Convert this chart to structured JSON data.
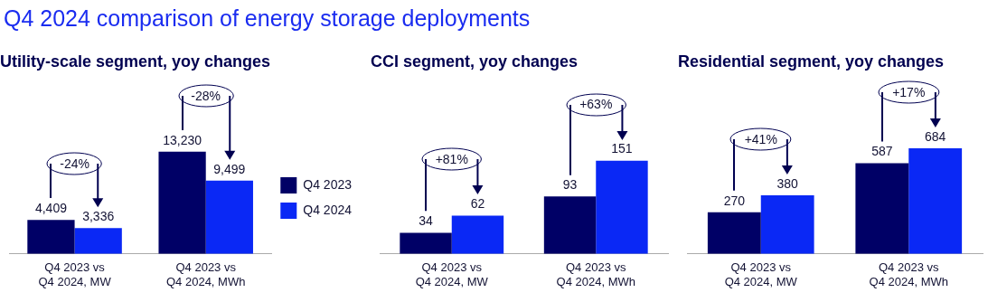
{
  "chart_data": [
    {
      "type": "other",
      "title": "Q4 2024 comparison of energy storage deployments"
    },
    {
      "type": "bar",
      "title": "Utility-scale segment, yoy changes",
      "categories": [
        "Q4 2023 vs Q4 2024, MW",
        "Q4 2023 vs Q4 2024, MWh"
      ],
      "series": [
        {
          "name": "Q4 2023",
          "color": "#000066",
          "values": [
            4409,
            13230
          ],
          "value_labels": [
            "4,409",
            "13,230"
          ]
        },
        {
          "name": "Q4 2024",
          "color": "#0a28f5",
          "values": [
            3336,
            9499
          ],
          "value_labels": [
            "3,336",
            "9,499"
          ]
        }
      ],
      "tick_labels": "x",
      "legend": "right",
      "annotations": [
        "-24%",
        "-28%"
      ]
    },
    {
      "type": "bar",
      "title": "CCI segment, yoy changes",
      "categories": [
        "Q4 2023 vs Q4 2024, MW",
        "Q4 2023 vs Q4 2024, MWh"
      ],
      "series": [
        {
          "color": "#000066",
          "values": [
            34,
            93
          ]
        },
        {
          "color": "#0a28f5",
          "values": [
            62,
            151
          ]
        }
      ],
      "data_labels": true,
      "tick_labels": "x",
      "annotations": [
        "+81%",
        "+63%"
      ]
    },
    {
      "type": "bar",
      "title": "Residential segment, yoy changes",
      "categories": [
        "Q4 2023 vs Q4 2024, MW",
        "Q4 2023 vs Q4 2024, MWh"
      ],
      "series": [
        {
          "color": "#000066",
          "values": [
            270,
            587
          ]
        },
        {
          "color": "#0a28f5",
          "values": [
            380,
            684
          ]
        }
      ],
      "data_labels": true,
      "tick_labels": "x",
      "annotations": [
        "+41%",
        "+17%"
      ]
    }
  ]
}
